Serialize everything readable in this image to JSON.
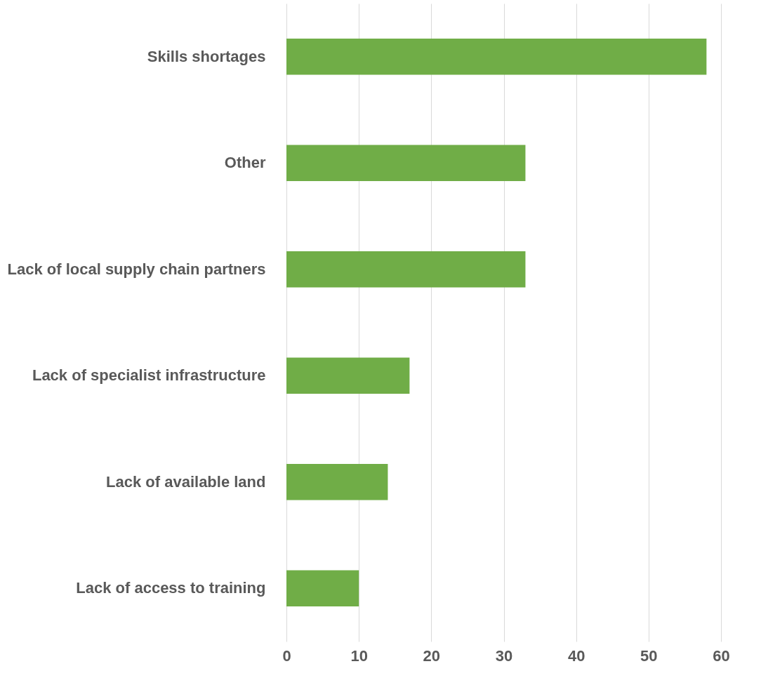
{
  "chart_data": {
    "type": "bar",
    "orientation": "horizontal",
    "categories": [
      "Skills shortages",
      "Other",
      "Lack of local supply chain partners",
      "Lack of specialist infrastructure",
      "Lack of available land",
      "Lack of access to training"
    ],
    "values": [
      58,
      33,
      33,
      17,
      14,
      10
    ],
    "color": "#70ad47",
    "xlim": [
      0,
      60
    ],
    "xticks": [
      0,
      10,
      20,
      30,
      40,
      50,
      60
    ],
    "grid": "x"
  }
}
